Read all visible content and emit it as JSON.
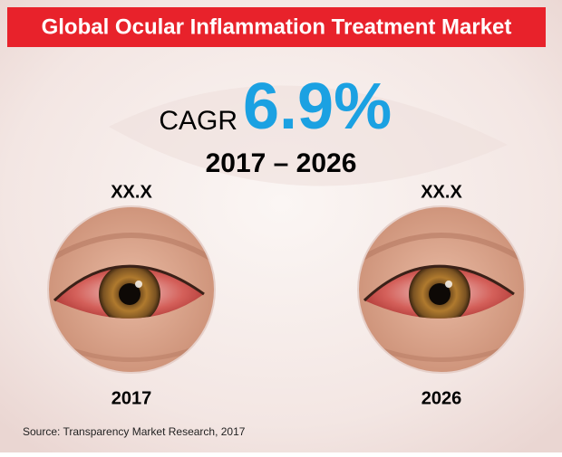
{
  "header": {
    "title": "Global Ocular Inflammation Treatment Market"
  },
  "cagr": {
    "label": "CAGR",
    "value": "6.9%",
    "period": "2017 – 2026"
  },
  "circles": [
    {
      "value": "XX.X",
      "year": "2017"
    },
    {
      "value": "XX.X",
      "year": "2026"
    }
  ],
  "source": "Source: Transparency Market Research, 2017"
}
